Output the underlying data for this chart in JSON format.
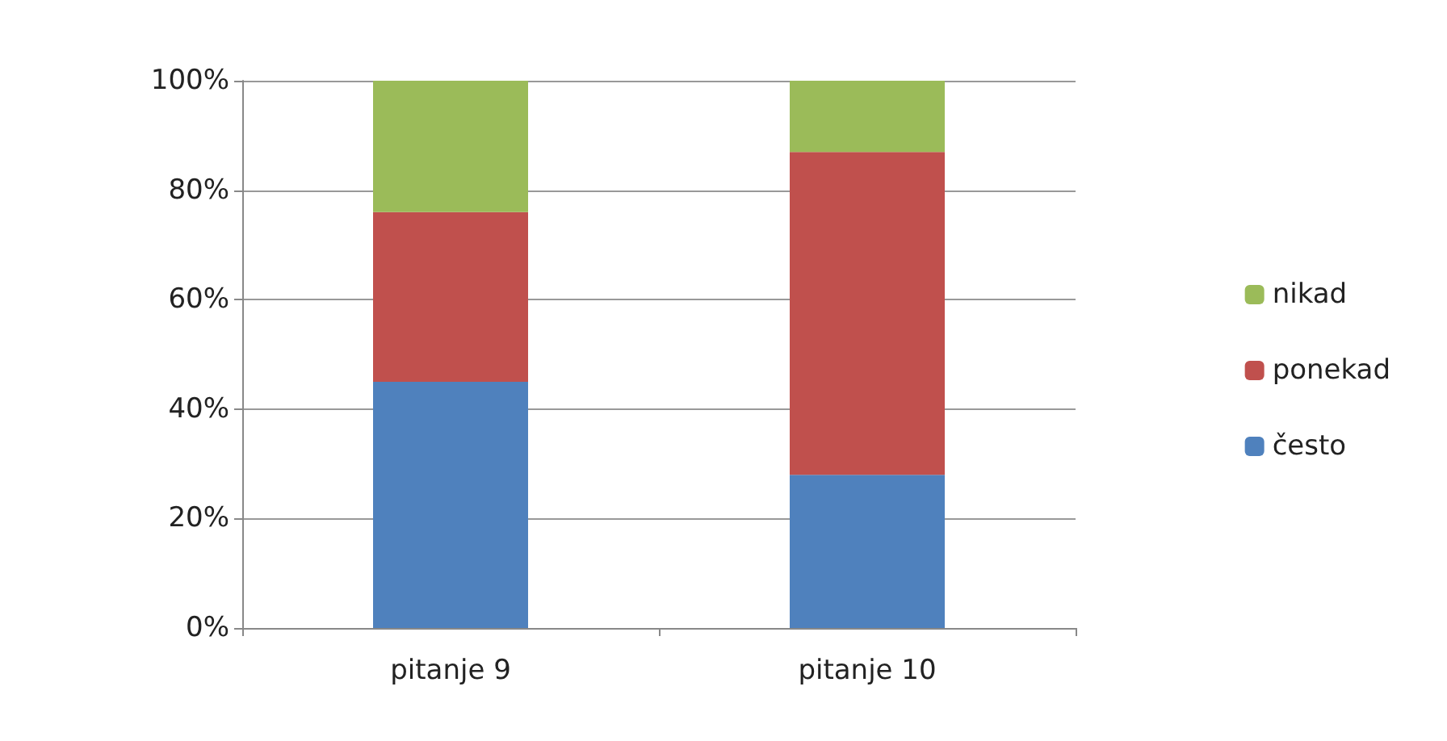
{
  "chart_data": {
    "type": "bar",
    "stacked": true,
    "categories": [
      "pitanje 9",
      "pitanje 10"
    ],
    "series": [
      {
        "name": "često",
        "color": "#4f81bd",
        "values": [
          45,
          28
        ]
      },
      {
        "name": "ponekad",
        "color": "#c0504d",
        "values": [
          31,
          59
        ]
      },
      {
        "name": "nikad",
        "color": "#9bbb59",
        "values": [
          24,
          13
        ]
      }
    ],
    "ylim": [
      0,
      100
    ],
    "yticks": [
      {
        "value": 0,
        "label": "0%"
      },
      {
        "value": 20,
        "label": "20%"
      },
      {
        "value": 40,
        "label": "40%"
      },
      {
        "value": 60,
        "label": "60%"
      },
      {
        "value": 80,
        "label": "80%"
      },
      {
        "value": 100,
        "label": "100%"
      }
    ],
    "grid": "y",
    "legend": "right"
  }
}
